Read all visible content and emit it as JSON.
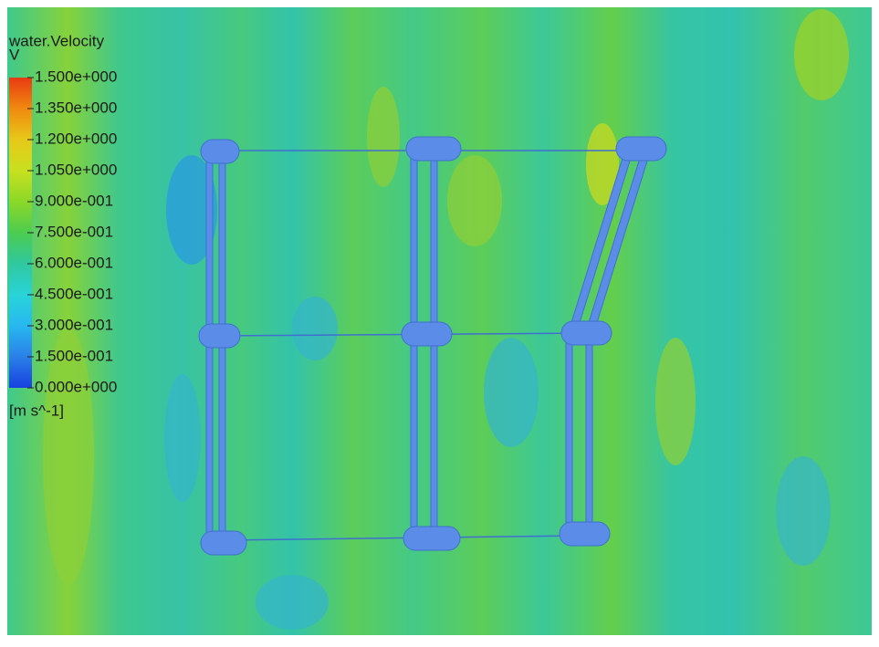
{
  "legend": {
    "title": "water.Velocity",
    "variable": "V",
    "ticks": [
      {
        "value": 1.5,
        "label": "1.500e+000"
      },
      {
        "value": 1.35,
        "label": "1.350e+000"
      },
      {
        "value": 1.2,
        "label": "1.200e+000"
      },
      {
        "value": 1.05,
        "label": "1.050e+000"
      },
      {
        "value": 0.9,
        "label": "9.000e-001"
      },
      {
        "value": 0.75,
        "label": "7.500e-001"
      },
      {
        "value": 0.6,
        "label": "6.000e-001"
      },
      {
        "value": 0.45,
        "label": "4.500e-001"
      },
      {
        "value": 0.3,
        "label": "3.000e-001"
      },
      {
        "value": 0.15,
        "label": "1.500e-001"
      },
      {
        "value": 0,
        "label": "0.000e+000"
      }
    ],
    "unit": "[m s^-1]"
  }
}
